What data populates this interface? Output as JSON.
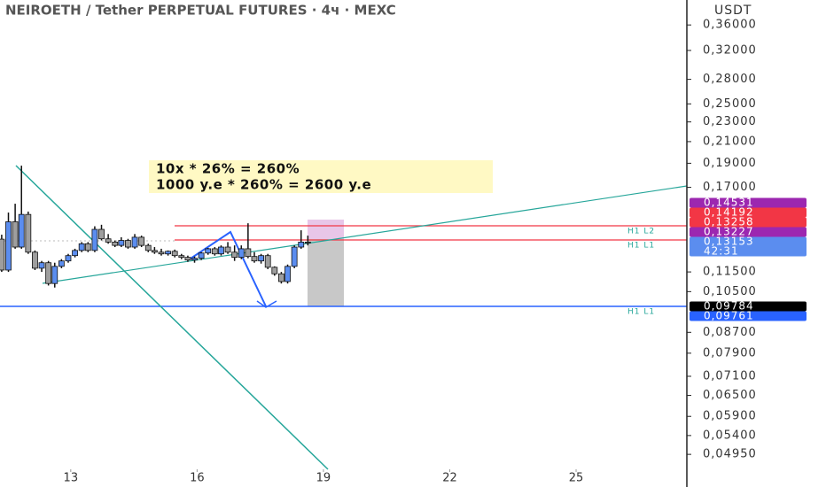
{
  "chart_data": {
    "type": "candlestick",
    "title": "NEIROETH / Tether PERPETUAL FUTURES · 4ч · MEXC",
    "currency": "USDT",
    "log_scale": true,
    "up_color": "#5b8def",
    "down_color": "#9e9e9e",
    "x": [
      11.36,
      11.52,
      11.68,
      11.83,
      11.99,
      12.15,
      12.31,
      12.47,
      12.62,
      12.78,
      12.94,
      13.1,
      13.26,
      13.41,
      13.57,
      13.73,
      13.89,
      14.05,
      14.2,
      14.36,
      14.52,
      14.68,
      14.84,
      14.99,
      15.15,
      15.31,
      15.47,
      15.63,
      15.78,
      15.94,
      16.1,
      16.26,
      16.42,
      16.57,
      16.73,
      16.89,
      17.05,
      17.21,
      17.36,
      17.52,
      17.68,
      17.84,
      18.0,
      18.15,
      18.31,
      18.47,
      18.63
    ],
    "open": [
      0.1338,
      0.116,
      0.145,
      0.129,
      0.15,
      0.126,
      0.117,
      0.12,
      0.109,
      0.118,
      0.121,
      0.124,
      0.127,
      0.131,
      0.127,
      0.14,
      0.134,
      0.132,
      0.13,
      0.133,
      0.129,
      0.135,
      0.13,
      0.127,
      0.126,
      0.125,
      0.1265,
      0.124,
      0.123,
      0.1215,
      0.1225,
      0.1255,
      0.128,
      0.125,
      0.129,
      0.126,
      0.123,
      0.128,
      0.1235,
      0.121,
      0.124,
      0.1175,
      0.114,
      0.11,
      0.118,
      0.129,
      0.132
    ],
    "high": [
      0.1366,
      0.1513,
      0.1576,
      0.1879,
      0.152,
      0.127,
      0.121,
      0.121,
      0.12,
      0.122,
      0.125,
      0.128,
      0.132,
      0.132,
      0.142,
      0.143,
      0.137,
      0.133,
      0.135,
      0.134,
      0.137,
      0.136,
      0.131,
      0.129,
      0.128,
      0.127,
      0.1275,
      0.125,
      0.124,
      0.1235,
      0.126,
      0.1285,
      0.129,
      0.13,
      0.132,
      0.13,
      0.13,
      0.144,
      0.126,
      0.125,
      0.125,
      0.118,
      0.115,
      0.119,
      0.13,
      0.1394,
      0.136
    ],
    "low": [
      0.115,
      0.115,
      0.128,
      0.128,
      0.125,
      0.116,
      0.115,
      0.108,
      0.107,
      0.117,
      0.12,
      0.123,
      0.126,
      0.126,
      0.126,
      0.133,
      0.131,
      0.129,
      0.129,
      0.128,
      0.128,
      0.129,
      0.126,
      0.125,
      0.124,
      0.124,
      0.123,
      0.122,
      0.1205,
      0.12,
      0.1215,
      0.1245,
      0.124,
      0.124,
      0.125,
      0.121,
      0.122,
      0.1225,
      0.12,
      0.1195,
      0.1165,
      0.113,
      0.109,
      0.109,
      0.117,
      0.128,
      0.13
    ],
    "close": [
      0.116,
      0.145,
      0.129,
      0.15,
      0.126,
      0.117,
      0.12,
      0.109,
      0.118,
      0.121,
      0.124,
      0.127,
      0.131,
      0.127,
      0.14,
      0.134,
      0.132,
      0.13,
      0.133,
      0.129,
      0.135,
      0.13,
      0.127,
      0.126,
      0.125,
      0.1265,
      0.124,
      0.123,
      0.1215,
      0.1225,
      0.1255,
      0.128,
      0.125,
      0.129,
      0.126,
      0.123,
      0.128,
      0.1235,
      0.121,
      0.124,
      0.1175,
      0.114,
      0.11,
      0.118,
      0.129,
      0.132,
      0.1315
    ],
    "xlim": [
      11.32,
      27.63
    ],
    "xticks": [
      13,
      16,
      19,
      22,
      25
    ],
    "ylim": [
      0.0462,
      0.404
    ],
    "yticks": [
      {
        "value": 0.36,
        "label": "0,36000"
      },
      {
        "value": 0.32,
        "label": "0,32000"
      },
      {
        "value": 0.28,
        "label": "0,28000"
      },
      {
        "value": 0.25,
        "label": "0,25000"
      },
      {
        "value": 0.23,
        "label": "0,23000"
      },
      {
        "value": 0.21,
        "label": "0,21000"
      },
      {
        "value": 0.19,
        "label": "0,19000"
      },
      {
        "value": 0.17,
        "label": "0,17000"
      },
      {
        "value": 0.115,
        "label": "0,11500"
      },
      {
        "value": 0.105,
        "label": "0,10500"
      },
      {
        "value": 0.087,
        "label": "0,08700"
      },
      {
        "value": 0.079,
        "label": "0,07900"
      },
      {
        "value": 0.071,
        "label": "0,07100"
      },
      {
        "value": 0.065,
        "label": "0,06500"
      },
      {
        "value": 0.059,
        "label": "0,05900"
      },
      {
        "value": 0.054,
        "label": "0,05400"
      },
      {
        "value": 0.0495,
        "label": "0,04950"
      }
    ],
    "price_tags": [
      {
        "value": 0.14531,
        "label": "0,14531",
        "color": "#9c27b0"
      },
      {
        "value": 0.14192,
        "label": "0,14192",
        "color": "#f23645"
      },
      {
        "value": 0.13258,
        "label": "0,13258",
        "color": "#f23645"
      },
      {
        "value": 0.13227,
        "label": "0,13227",
        "color": "#9c27b0"
      },
      {
        "value": 0.13153,
        "label": "0,13153",
        "color": "#5b8def",
        "countdown": "42:31"
      },
      {
        "value": 0.09784,
        "label": "0,09784",
        "color": "#000000"
      },
      {
        "value": 0.09761,
        "label": "0,09761",
        "color": "#2962ff"
      }
    ],
    "annotations": [
      "10x * 26% = 260%",
      "1000 y.e * 260% = 2600 y.e"
    ],
    "level_labels": [
      "H1 L2",
      "H1 L1",
      "H1 L1"
    ]
  }
}
